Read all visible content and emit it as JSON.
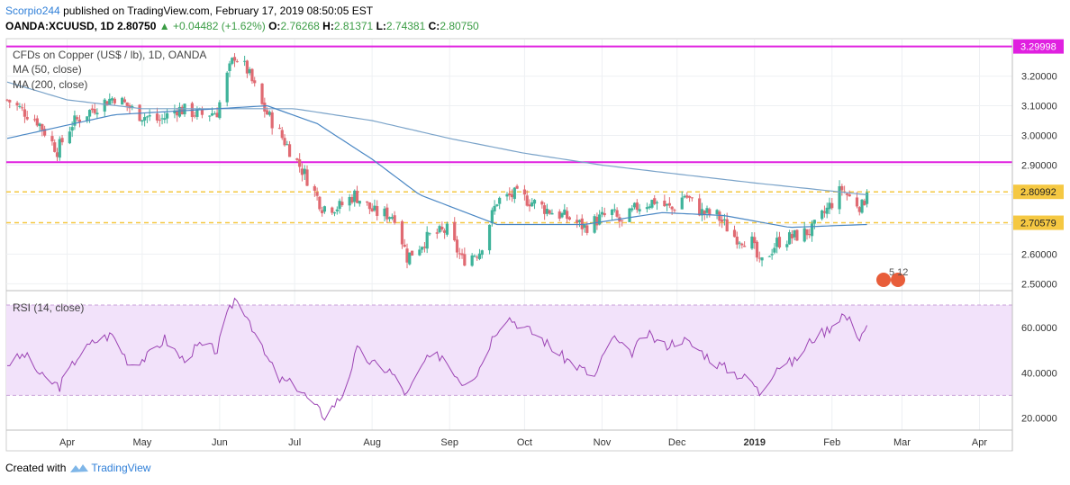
{
  "header": {
    "author": "Scorpio244",
    "published": "published on TradingView.com, February 17, 2019 08:50:05 EST",
    "symbol": "OANDA:XCUUSD, 1D",
    "last": "2.80750",
    "change": "+0.04482 (+1.62%)",
    "o_label": "O:",
    "o": "2.76268",
    "h_label": "H:",
    "h": "2.81371",
    "l_label": "L:",
    "l": "2.74381",
    "c_label": "C:",
    "c": "2.80750"
  },
  "footer": {
    "created": "Created with",
    "brand": "TradingView"
  },
  "colors": {
    "up": "#3fb39a",
    "down": "#e06a72",
    "ma50": "#4a87c4",
    "ma200": "#7aa3c9",
    "magenta": "#e020e0",
    "dashed": "#f5c842",
    "rsi": "#9c44b4",
    "rsi_band": "#f2e2fa"
  },
  "chart_data": [
    {
      "type": "candlestick",
      "title": "CFDs on Copper (US$ / lb), 1D, OANDA",
      "legend": [
        "MA (50, close)",
        "MA (200, close)"
      ],
      "y_ticks": [
        2.5,
        2.6,
        2.7,
        2.8,
        2.9,
        3.0,
        3.1,
        3.2
      ],
      "y_tick_labels": [
        "2.50000",
        "2.60000",
        "2.70000",
        "2.80000",
        "2.90000",
        "3.00000",
        "3.10000",
        "3.20000"
      ],
      "ylim": [
        2.48,
        3.32
      ],
      "x_labels": [
        "Apr",
        "May",
        "Jun",
        "Jul",
        "Aug",
        "Sep",
        "Oct",
        "Nov",
        "Dec",
        "2019",
        "Feb",
        "Mar",
        "Apr"
      ],
      "horizontal_lines": [
        {
          "value": 3.29998,
          "label": "3.29998",
          "style": "solid",
          "color": "#e020e0"
        },
        {
          "value": 2.91,
          "style": "solid",
          "color": "#e020e0"
        },
        {
          "value": 2.80992,
          "label": "2.80992",
          "style": "dashed",
          "color": "#f5c842"
        },
        {
          "value": 2.70579,
          "label": "2.70579",
          "style": "dashed",
          "color": "#f5c842"
        }
      ],
      "close_anchors": [
        [
          "2018-03-08",
          3.12
        ],
        [
          "2018-03-20",
          3.05
        ],
        [
          "2018-03-28",
          2.95
        ],
        [
          "2018-04-03",
          3.04
        ],
        [
          "2018-04-13",
          3.1
        ],
        [
          "2018-04-20",
          3.13
        ],
        [
          "2018-04-30",
          3.07
        ],
        [
          "2018-05-08",
          3.05
        ],
        [
          "2018-05-15",
          3.09
        ],
        [
          "2018-05-25",
          3.07
        ],
        [
          "2018-05-31",
          3.08
        ],
        [
          "2018-06-04",
          3.2
        ],
        [
          "2018-06-07",
          3.27
        ],
        [
          "2018-06-12",
          3.22
        ],
        [
          "2018-06-18",
          3.1
        ],
        [
          "2018-06-27",
          2.98
        ],
        [
          "2018-07-05",
          2.87
        ],
        [
          "2018-07-12",
          2.76
        ],
        [
          "2018-07-19",
          2.76
        ],
        [
          "2018-07-25",
          2.8
        ],
        [
          "2018-08-02",
          2.74
        ],
        [
          "2018-08-10",
          2.73
        ],
        [
          "2018-08-15",
          2.59
        ],
        [
          "2018-08-24",
          2.66
        ],
        [
          "2018-08-31",
          2.68
        ],
        [
          "2018-09-06",
          2.58
        ],
        [
          "2018-09-13",
          2.61
        ],
        [
          "2018-09-20",
          2.78
        ],
        [
          "2018-09-27",
          2.8
        ],
        [
          "2018-10-03",
          2.78
        ],
        [
          "2018-10-10",
          2.75
        ],
        [
          "2018-10-19",
          2.72
        ],
        [
          "2018-10-25",
          2.69
        ],
        [
          "2018-10-31",
          2.72
        ],
        [
          "2018-11-05",
          2.74
        ],
        [
          "2018-11-09",
          2.7
        ],
        [
          "2018-11-15",
          2.76
        ],
        [
          "2018-11-22",
          2.78
        ],
        [
          "2018-11-29",
          2.75
        ],
        [
          "2018-12-04",
          2.8
        ],
        [
          "2018-12-11",
          2.74
        ],
        [
          "2018-12-17",
          2.73
        ],
        [
          "2018-12-24",
          2.66
        ],
        [
          "2018-12-31",
          2.64
        ],
        [
          "2019-01-03",
          2.56
        ],
        [
          "2019-01-10",
          2.64
        ],
        [
          "2019-01-17",
          2.66
        ],
        [
          "2019-01-24",
          2.68
        ],
        [
          "2019-01-30",
          2.75
        ],
        [
          "2019-02-05",
          2.82
        ],
        [
          "2019-02-08",
          2.79
        ],
        [
          "2019-02-13",
          2.76
        ],
        [
          "2019-02-15",
          2.8075
        ]
      ],
      "ma50_anchors": [
        [
          "2018-03-08",
          2.99
        ],
        [
          "2018-04-20",
          3.07
        ],
        [
          "2018-05-31",
          3.09
        ],
        [
          "2018-06-20",
          3.1
        ],
        [
          "2018-07-10",
          3.04
        ],
        [
          "2018-08-01",
          2.92
        ],
        [
          "2018-08-20",
          2.8
        ],
        [
          "2018-09-20",
          2.7
        ],
        [
          "2018-10-25",
          2.7
        ],
        [
          "2018-11-25",
          2.74
        ],
        [
          "2018-12-20",
          2.73
        ],
        [
          "2019-01-15",
          2.69
        ],
        [
          "2019-02-15",
          2.7
        ]
      ],
      "ma200_anchors": [
        [
          "2018-03-08",
          3.18
        ],
        [
          "2018-04-01",
          3.12
        ],
        [
          "2018-05-01",
          3.09
        ],
        [
          "2018-06-01",
          3.09
        ],
        [
          "2018-07-01",
          3.09
        ],
        [
          "2018-08-01",
          3.05
        ],
        [
          "2018-09-01",
          2.99
        ],
        [
          "2018-10-01",
          2.94
        ],
        [
          "2018-11-01",
          2.9
        ],
        [
          "2018-12-01",
          2.87
        ],
        [
          "2019-01-01",
          2.84
        ],
        [
          "2019-02-15",
          2.8
        ]
      ]
    },
    {
      "type": "line",
      "title": "RSI (14, close)",
      "y_ticks": [
        20,
        40,
        60
      ],
      "y_tick_labels": [
        "20.0000",
        "40.0000",
        "60.0000"
      ],
      "ylim": [
        15,
        76
      ],
      "band": [
        30,
        70
      ],
      "rsi_anchors": [
        [
          "2018-03-08",
          44
        ],
        [
          "2018-03-15",
          48
        ],
        [
          "2018-03-22",
          38
        ],
        [
          "2018-03-29",
          34
        ],
        [
          "2018-04-05",
          47
        ],
        [
          "2018-04-12",
          54
        ],
        [
          "2018-04-19",
          57
        ],
        [
          "2018-04-26",
          44
        ],
        [
          "2018-05-03",
          47
        ],
        [
          "2018-05-10",
          55
        ],
        [
          "2018-05-17",
          46
        ],
        [
          "2018-05-24",
          52
        ],
        [
          "2018-05-31",
          50
        ],
        [
          "2018-06-04",
          65
        ],
        [
          "2018-06-07",
          73
        ],
        [
          "2018-06-12",
          66
        ],
        [
          "2018-06-18",
          50
        ],
        [
          "2018-06-25",
          37
        ],
        [
          "2018-07-02",
          34
        ],
        [
          "2018-07-09",
          25
        ],
        [
          "2018-07-13",
          21
        ],
        [
          "2018-07-20",
          30
        ],
        [
          "2018-07-26",
          50
        ],
        [
          "2018-08-01",
          44
        ],
        [
          "2018-08-08",
          41
        ],
        [
          "2018-08-15",
          30
        ],
        [
          "2018-08-22",
          45
        ],
        [
          "2018-08-29",
          48
        ],
        [
          "2018-09-06",
          36
        ],
        [
          "2018-09-12",
          40
        ],
        [
          "2018-09-19",
          58
        ],
        [
          "2018-09-24",
          65
        ],
        [
          "2018-10-01",
          60
        ],
        [
          "2018-10-08",
          55
        ],
        [
          "2018-10-15",
          48
        ],
        [
          "2018-10-22",
          43
        ],
        [
          "2018-10-29",
          38
        ],
        [
          "2018-11-05",
          56
        ],
        [
          "2018-11-12",
          48
        ],
        [
          "2018-11-19",
          57
        ],
        [
          "2018-11-26",
          52
        ],
        [
          "2018-12-03",
          55
        ],
        [
          "2018-12-10",
          50
        ],
        [
          "2018-12-17",
          44
        ],
        [
          "2018-12-24",
          40
        ],
        [
          "2018-12-31",
          36
        ],
        [
          "2019-01-03",
          31
        ],
        [
          "2019-01-10",
          43
        ],
        [
          "2019-01-17",
          45
        ],
        [
          "2019-01-24",
          55
        ],
        [
          "2019-01-30",
          59
        ],
        [
          "2019-02-05",
          66
        ],
        [
          "2019-02-08",
          63
        ],
        [
          "2019-02-12",
          56
        ],
        [
          "2019-02-15",
          61
        ]
      ]
    }
  ],
  "event_badge": {
    "label": "5 12"
  }
}
